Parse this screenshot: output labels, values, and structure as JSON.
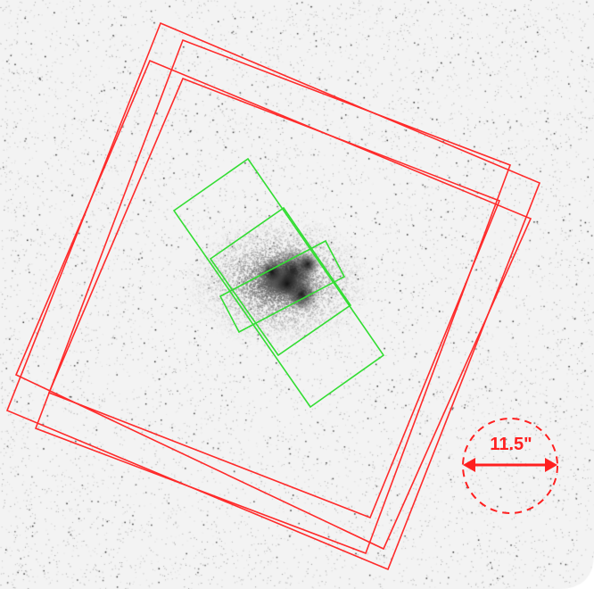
{
  "image": {
    "background": "#f3f3f3",
    "galaxy_color": "#1a1a1a"
  },
  "overlays": {
    "red_color": "#ff2a2a",
    "green_color": "#33dd33"
  },
  "scale_bar": {
    "label": "11.5\"",
    "color": "#ff2020"
  }
}
